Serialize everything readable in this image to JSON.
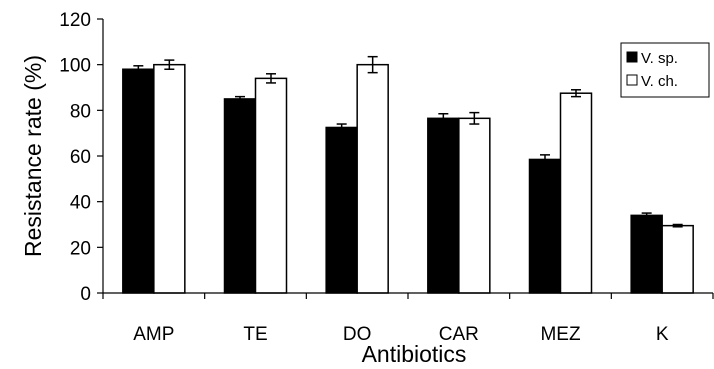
{
  "chart_data": {
    "type": "bar",
    "title": "",
    "xlabel": "Antibiotics",
    "ylabel": "Resistance rate (%)",
    "ylim": [
      0,
      120
    ],
    "yticks": [
      0,
      20,
      40,
      60,
      80,
      100,
      120
    ],
    "grid": false,
    "legend_position": "top-right",
    "categories": [
      "AMP",
      "TE",
      "DO",
      "CAR",
      "MEZ",
      "K"
    ],
    "series": [
      {
        "name": "V. sp.",
        "color": "#000000",
        "values": [
          98,
          85,
          72.5,
          76.5,
          58.5,
          34
        ],
        "errors": [
          1.5,
          1,
          1.5,
          2,
          2,
          1
        ]
      },
      {
        "name": "V. ch.",
        "color": "#ffffff",
        "values": [
          100,
          94,
          100,
          76.5,
          87.5,
          29.5
        ],
        "errors": [
          2,
          2,
          3.5,
          2.5,
          1.5,
          0.5
        ]
      }
    ]
  }
}
